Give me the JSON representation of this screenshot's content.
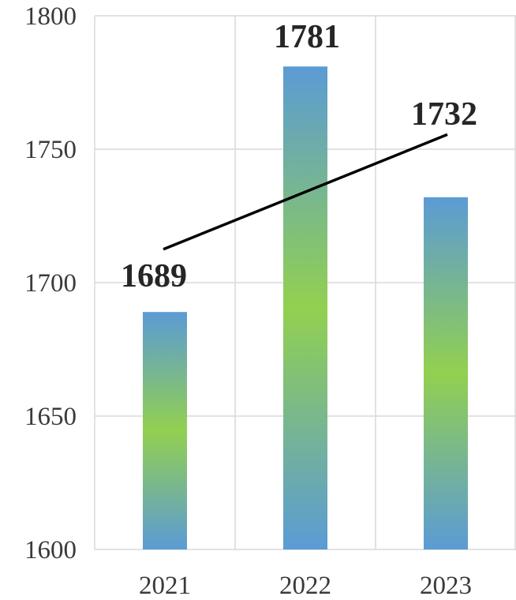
{
  "chart_data": {
    "type": "bar",
    "categories": [
      "2021",
      "2022",
      "2023"
    ],
    "values": [
      1689,
      1781,
      1732
    ],
    "data_labels": [
      "1689",
      "1781",
      "1732"
    ],
    "ylim": [
      1600,
      1800
    ],
    "yticks": [
      1600,
      1650,
      1700,
      1750,
      1800
    ],
    "ytick_labels": [
      "1600",
      "1650",
      "1700",
      "1750",
      "1800"
    ],
    "title": "",
    "xlabel": "",
    "ylabel": "",
    "grid": true,
    "legend": "none",
    "trendline": {
      "type": "linear",
      "from_category": "2021",
      "to_category": "2023"
    },
    "colors": {
      "bar_edge": "#5b9bd5",
      "bar_center": "#92d050",
      "grid": "#d9d9d9",
      "trendline": "#000000",
      "label_text": "#262626",
      "tick_text": "#3a3a3a"
    }
  }
}
